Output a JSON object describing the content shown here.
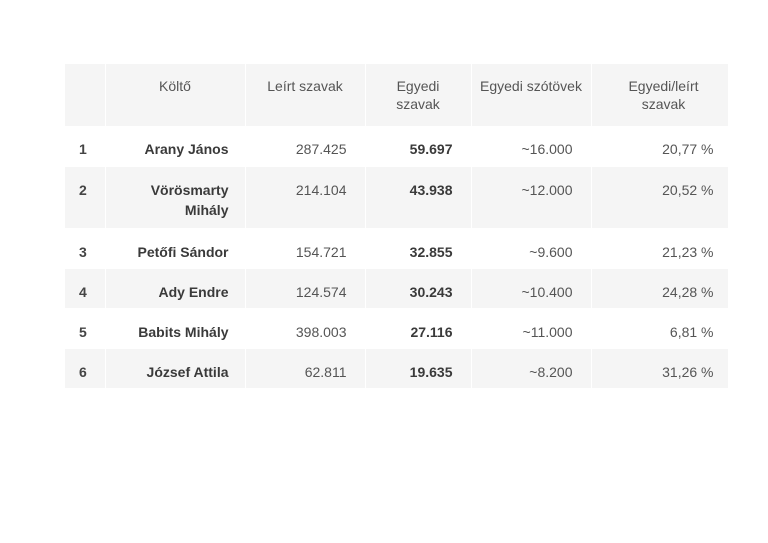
{
  "table": {
    "headers": {
      "rank": "",
      "poet": "Költő",
      "words": "Leírt szavak",
      "unique": "Egyedi szavak",
      "stems": "Egyedi szótövek",
      "ratio": "Egyedi/leírt szavak"
    },
    "rows": [
      {
        "rank": "1",
        "poet": "Arany János",
        "words": "287.425",
        "unique": "59.697",
        "stems": "~16.000",
        "ratio": "20,77 %"
      },
      {
        "rank": "2",
        "poet": "Vörösmarty Mihály",
        "words": "214.104",
        "unique": "43.938",
        "stems": "~12.000",
        "ratio": "20,52 %"
      },
      {
        "rank": "3",
        "poet": "Petőfi Sándor",
        "words": "154.721",
        "unique": "32.855",
        "stems": "~9.600",
        "ratio": "21,23 %"
      },
      {
        "rank": "4",
        "poet": "Ady Endre",
        "words": "124.574",
        "unique": "30.243",
        "stems": "~10.400",
        "ratio": "24,28 %"
      },
      {
        "rank": "5",
        "poet": "Babits Mihály",
        "words": "398.003",
        "unique": "27.116",
        "stems": "~11.000",
        "ratio": "6,81 %"
      },
      {
        "rank": "6",
        "poet": "József Attila",
        "words": "62.811",
        "unique": "19.635",
        "stems": "~8.200",
        "ratio": "31,26 %"
      }
    ]
  }
}
